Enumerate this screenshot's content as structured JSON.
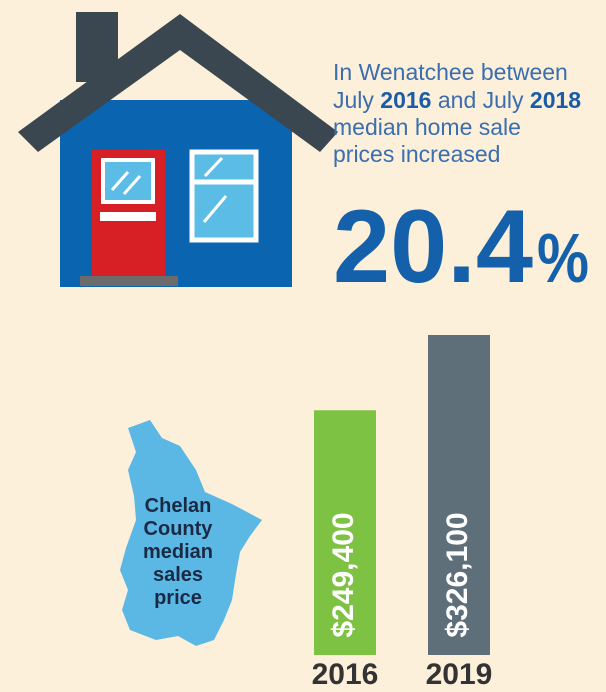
{
  "headline": {
    "line1": "In Wenatchee between",
    "line2": [
      "July",
      "2016",
      "and July",
      "2018"
    ],
    "line3": "median home sale",
    "line4": "prices increased"
  },
  "stat": {
    "value": "20.4",
    "unit": "%"
  },
  "map_label": [
    "Chelan",
    "County",
    "median",
    "sales",
    "price"
  ],
  "chart_data": {
    "type": "bar",
    "categories": [
      "2016",
      "2019"
    ],
    "values": [
      249400,
      326100
    ],
    "value_labels": [
      "$249,400",
      "$326,100"
    ],
    "colors": [
      "#7dc242",
      "#5f6f7a"
    ]
  }
}
